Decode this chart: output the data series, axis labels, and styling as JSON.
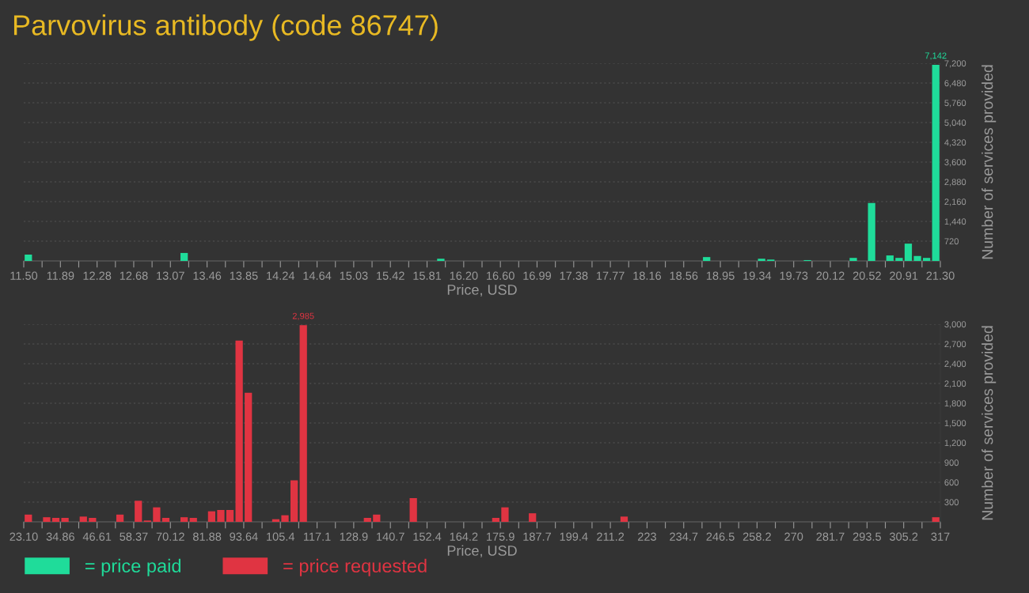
{
  "chart_data": [
    {
      "type": "histogram",
      "title": "Parvovirus antibody (code 86747)",
      "xlabel": "Price, USD",
      "ylabel": "Number of services provided",
      "bins": [
        11.5,
        11.598,
        11.696,
        11.794,
        11.892,
        11.99,
        12.088,
        12.186,
        12.284,
        12.382,
        12.48,
        12.578,
        12.676,
        12.774,
        12.872,
        12.97,
        13.068,
        13.166,
        13.264,
        13.362,
        13.46,
        13.558,
        13.656,
        13.754,
        13.852,
        13.95,
        14.048,
        14.146,
        14.244,
        14.342,
        14.44,
        14.538,
        14.636,
        14.734,
        14.832,
        14.93,
        15.028,
        15.126,
        15.224,
        15.322,
        15.42,
        15.518,
        15.616,
        15.714,
        15.812,
        15.91,
        16.008,
        16.106,
        16.204,
        16.302,
        16.4,
        16.498,
        16.596,
        16.694,
        16.792,
        16.89,
        16.988,
        17.086,
        17.184,
        17.282,
        17.38,
        17.478,
        17.576,
        17.674,
        17.772,
        17.87,
        17.968,
        18.066,
        18.164,
        18.262,
        18.36,
        18.458,
        18.556,
        18.654,
        18.752,
        18.85,
        18.948,
        19.046,
        19.144,
        19.242,
        19.34,
        19.438,
        19.536,
        19.634,
        19.732,
        19.83,
        19.928,
        20.026,
        20.124,
        20.222,
        20.32,
        20.418,
        20.516,
        20.614,
        20.712,
        20.81,
        20.908,
        21.006,
        21.104,
        21.202,
        21.3
      ],
      "series": [
        {
          "name": "= price paid",
          "color": "#1fdc9a",
          "values": [
            230,
            0,
            0,
            0,
            0,
            0,
            0,
            0,
            0,
            0,
            0,
            0,
            0,
            0,
            0,
            0,
            0,
            290,
            0,
            0,
            0,
            0,
            0,
            0,
            0,
            0,
            0,
            0,
            0,
            0,
            0,
            0,
            0,
            0,
            0,
            0,
            0,
            0,
            0,
            0,
            0,
            0,
            0,
            0,
            0,
            80,
            0,
            0,
            0,
            0,
            0,
            0,
            0,
            0,
            0,
            0,
            0,
            0,
            0,
            0,
            0,
            0,
            0,
            0,
            0,
            0,
            0,
            0,
            0,
            0,
            0,
            0,
            0,
            0,
            140,
            0,
            0,
            0,
            0,
            0,
            80,
            50,
            0,
            0,
            0,
            30,
            0,
            0,
            0,
            0,
            110,
            0,
            2110,
            0,
            200,
            110,
            630,
            180,
            110,
            7142
          ],
          "value_labels": [
            null,
            null,
            null,
            null,
            null,
            null,
            null,
            null,
            null,
            null,
            null,
            null,
            null,
            null,
            null,
            null,
            null,
            null,
            null,
            null,
            null,
            null,
            null,
            null,
            null,
            null,
            null,
            null,
            null,
            null,
            null,
            null,
            null,
            null,
            null,
            null,
            null,
            null,
            null,
            null,
            null,
            null,
            null,
            null,
            null,
            null,
            null,
            null,
            null,
            null,
            null,
            null,
            null,
            null,
            null,
            null,
            null,
            null,
            null,
            null,
            null,
            null,
            null,
            null,
            null,
            null,
            null,
            null,
            null,
            null,
            null,
            null,
            null,
            null,
            null,
            null,
            null,
            null,
            null,
            null,
            null,
            null,
            null,
            null,
            null,
            null,
            null,
            null,
            null,
            null,
            null,
            null,
            null,
            null,
            null,
            null,
            null,
            null,
            null,
            "7,142"
          ]
        }
      ],
      "xlim": [
        11.5,
        21.3
      ],
      "xticks": [
        {
          "value": 11.5,
          "label": "11.50"
        },
        {
          "value": 11.696,
          "label": null
        },
        {
          "value": 11.892,
          "label": "11.89"
        },
        {
          "value": 12.088,
          "label": null
        },
        {
          "value": 12.284,
          "label": "12.28"
        },
        {
          "value": 12.48,
          "label": null
        },
        {
          "value": 12.676,
          "label": "12.68"
        },
        {
          "value": 12.872,
          "label": null
        },
        {
          "value": 13.068,
          "label": "13.07"
        },
        {
          "value": 13.264,
          "label": null
        },
        {
          "value": 13.46,
          "label": "13.46"
        },
        {
          "value": 13.656,
          "label": null
        },
        {
          "value": 13.852,
          "label": "13.85"
        },
        {
          "value": 14.048,
          "label": null
        },
        {
          "value": 14.244,
          "label": "14.24"
        },
        {
          "value": 14.44,
          "label": null
        },
        {
          "value": 14.636,
          "label": "14.64"
        },
        {
          "value": 14.832,
          "label": null
        },
        {
          "value": 15.028,
          "label": "15.03"
        },
        {
          "value": 15.224,
          "label": null
        },
        {
          "value": 15.42,
          "label": "15.42"
        },
        {
          "value": 15.616,
          "label": null
        },
        {
          "value": 15.812,
          "label": "15.81"
        },
        {
          "value": 16.008,
          "label": null
        },
        {
          "value": 16.204,
          "label": "16.20"
        },
        {
          "value": 16.4,
          "label": null
        },
        {
          "value": 16.596,
          "label": "16.60"
        },
        {
          "value": 16.792,
          "label": null
        },
        {
          "value": 16.988,
          "label": "16.99"
        },
        {
          "value": 17.184,
          "label": null
        },
        {
          "value": 17.38,
          "label": "17.38"
        },
        {
          "value": 17.576,
          "label": null
        },
        {
          "value": 17.772,
          "label": "17.77"
        },
        {
          "value": 17.968,
          "label": null
        },
        {
          "value": 18.164,
          "label": "18.16"
        },
        {
          "value": 18.36,
          "label": null
        },
        {
          "value": 18.556,
          "label": "18.56"
        },
        {
          "value": 18.752,
          "label": null
        },
        {
          "value": 18.948,
          "label": "18.95"
        },
        {
          "value": 19.144,
          "label": null
        },
        {
          "value": 19.34,
          "label": "19.34"
        },
        {
          "value": 19.536,
          "label": null
        },
        {
          "value": 19.732,
          "label": "19.73"
        },
        {
          "value": 19.928,
          "label": null
        },
        {
          "value": 20.124,
          "label": "20.12"
        },
        {
          "value": 20.32,
          "label": null
        },
        {
          "value": 20.516,
          "label": "20.52"
        },
        {
          "value": 20.712,
          "label": null
        },
        {
          "value": 20.908,
          "label": "20.91"
        },
        {
          "value": 21.104,
          "label": null
        },
        {
          "value": 21.3,
          "label": "21.30"
        }
      ],
      "ylim": [
        0,
        7200
      ],
      "yticks": [
        {
          "value": 720,
          "label": "720"
        },
        {
          "value": 1440,
          "label": "1,440"
        },
        {
          "value": 2160,
          "label": "2,160"
        },
        {
          "value": 2880,
          "label": "2,880"
        },
        {
          "value": 3600,
          "label": "3,600"
        },
        {
          "value": 4320,
          "label": "4,320"
        },
        {
          "value": 5040,
          "label": "5,040"
        },
        {
          "value": 5760,
          "label": "5,760"
        },
        {
          "value": 6480,
          "label": "6,480"
        },
        {
          "value": 7200,
          "label": "7,200"
        }
      ],
      "grid": "y",
      "legend": "bottom left"
    },
    {
      "type": "histogram",
      "xlabel": "Price, USD",
      "ylabel": "Number of services provided",
      "bins": [
        23.1,
        26.039,
        28.978,
        31.917,
        34.856,
        37.795,
        40.734,
        43.673,
        46.612,
        49.551,
        52.49,
        55.429,
        58.368,
        61.307,
        64.246,
        67.185,
        70.124,
        73.063,
        76.002,
        78.941,
        81.88,
        84.819,
        87.758,
        90.697,
        93.636,
        96.575,
        99.514,
        102.453,
        105.392,
        108.331,
        111.27,
        114.209,
        117.148,
        120.087,
        123.026,
        125.965,
        128.904,
        131.843,
        134.782,
        137.721,
        140.66,
        143.599,
        146.538,
        149.477,
        152.416,
        155.355,
        158.294,
        161.233,
        164.172,
        167.111,
        170.05,
        172.989,
        175.928,
        178.867,
        181.806,
        184.745,
        187.684,
        190.623,
        193.562,
        196.501,
        199.44,
        202.379,
        205.318,
        208.257,
        211.196,
        214.135,
        217.074,
        220.013,
        222.952,
        225.891,
        228.83,
        231.769,
        234.708,
        237.647,
        240.586,
        243.525,
        246.464,
        249.403,
        252.342,
        255.281,
        258.22,
        261.159,
        264.098,
        267.037,
        269.976,
        272.915,
        275.854,
        278.793,
        281.732,
        284.671,
        287.61,
        290.549,
        293.488,
        296.427,
        299.366,
        302.305,
        305.244,
        308.183,
        311.122,
        314.061,
        317.0
      ],
      "series": [
        {
          "name": "= price requested",
          "color": "#e03442",
          "values": [
            110,
            0,
            70,
            60,
            60,
            0,
            80,
            60,
            0,
            0,
            110,
            0,
            320,
            20,
            220,
            60,
            0,
            70,
            60,
            0,
            160,
            180,
            180,
            2750,
            1960,
            0,
            0,
            40,
            100,
            630,
            2985,
            0,
            0,
            0,
            0,
            0,
            0,
            60,
            110,
            0,
            0,
            0,
            360,
            0,
            0,
            0,
            0,
            0,
            0,
            0,
            0,
            60,
            220,
            0,
            0,
            130,
            0,
            0,
            0,
            0,
            0,
            0,
            0,
            0,
            0,
            80,
            0,
            0,
            0,
            0,
            0,
            0,
            0,
            0,
            0,
            0,
            0,
            0,
            0,
            0,
            0,
            0,
            0,
            0,
            0,
            0,
            0,
            0,
            0,
            0,
            0,
            0,
            0,
            0,
            0,
            0,
            0,
            0,
            0,
            70
          ],
          "value_labels": [
            null,
            null,
            null,
            null,
            null,
            null,
            null,
            null,
            null,
            null,
            null,
            null,
            null,
            null,
            null,
            null,
            null,
            null,
            null,
            null,
            null,
            null,
            null,
            null,
            null,
            null,
            null,
            null,
            null,
            null,
            "2,985",
            null,
            null,
            null,
            null,
            null,
            null,
            null,
            null,
            null,
            null,
            null,
            null,
            null,
            null,
            null,
            null,
            null,
            null,
            null,
            null,
            null,
            null,
            null,
            null,
            null,
            null,
            null,
            null,
            null,
            null,
            null,
            null,
            null,
            null,
            null,
            null,
            null,
            null,
            null,
            null,
            null,
            null,
            null,
            null,
            null,
            null,
            null,
            null,
            null,
            null,
            null,
            null,
            null,
            null,
            null,
            null,
            null,
            null,
            null,
            null,
            null,
            null,
            null,
            null,
            null,
            null,
            null,
            null,
            null
          ]
        }
      ],
      "xlim": [
        23.1,
        317.0
      ],
      "xticks": [
        {
          "value": 23.1,
          "label": "23.10"
        },
        {
          "value": 28.978,
          "label": null
        },
        {
          "value": 34.856,
          "label": "34.86"
        },
        {
          "value": 40.734,
          "label": null
        },
        {
          "value": 46.612,
          "label": "46.61"
        },
        {
          "value": 52.49,
          "label": null
        },
        {
          "value": 58.368,
          "label": "58.37"
        },
        {
          "value": 64.246,
          "label": null
        },
        {
          "value": 70.124,
          "label": "70.12"
        },
        {
          "value": 76.002,
          "label": null
        },
        {
          "value": 81.88,
          "label": "81.88"
        },
        {
          "value": 87.758,
          "label": null
        },
        {
          "value": 93.636,
          "label": "93.64"
        },
        {
          "value": 99.514,
          "label": null
        },
        {
          "value": 105.392,
          "label": "105.4"
        },
        {
          "value": 111.27,
          "label": null
        },
        {
          "value": 117.148,
          "label": "117.1"
        },
        {
          "value": 123.026,
          "label": null
        },
        {
          "value": 128.904,
          "label": "128.9"
        },
        {
          "value": 134.782,
          "label": null
        },
        {
          "value": 140.66,
          "label": "140.7"
        },
        {
          "value": 146.538,
          "label": null
        },
        {
          "value": 152.416,
          "label": "152.4"
        },
        {
          "value": 158.294,
          "label": null
        },
        {
          "value": 164.172,
          "label": "164.2"
        },
        {
          "value": 170.05,
          "label": null
        },
        {
          "value": 175.928,
          "label": "175.9"
        },
        {
          "value": 181.806,
          "label": null
        },
        {
          "value": 187.684,
          "label": "187.7"
        },
        {
          "value": 193.562,
          "label": null
        },
        {
          "value": 199.44,
          "label": "199.4"
        },
        {
          "value": 205.318,
          "label": null
        },
        {
          "value": 211.196,
          "label": "211.2"
        },
        {
          "value": 217.074,
          "label": null
        },
        {
          "value": 222.952,
          "label": "223"
        },
        {
          "value": 228.83,
          "label": null
        },
        {
          "value": 234.708,
          "label": "234.7"
        },
        {
          "value": 240.586,
          "label": null
        },
        {
          "value": 246.464,
          "label": "246.5"
        },
        {
          "value": 252.342,
          "label": null
        },
        {
          "value": 258.22,
          "label": "258.2"
        },
        {
          "value": 264.098,
          "label": null
        },
        {
          "value": 269.976,
          "label": "270"
        },
        {
          "value": 275.854,
          "label": null
        },
        {
          "value": 281.732,
          "label": "281.7"
        },
        {
          "value": 287.61,
          "label": null
        },
        {
          "value": 293.488,
          "label": "293.5"
        },
        {
          "value": 299.366,
          "label": null
        },
        {
          "value": 305.244,
          "label": "305.2"
        },
        {
          "value": 311.122,
          "label": null
        },
        {
          "value": 317.0,
          "label": "317"
        }
      ],
      "ylim": [
        0,
        3000
      ],
      "yticks": [
        {
          "value": 300,
          "label": "300"
        },
        {
          "value": 600,
          "label": "600"
        },
        {
          "value": 900,
          "label": "900"
        },
        {
          "value": 1200,
          "label": "1,200"
        },
        {
          "value": 1500,
          "label": "1,500"
        },
        {
          "value": 1800,
          "label": "1,800"
        },
        {
          "value": 2100,
          "label": "2,100"
        },
        {
          "value": 2400,
          "label": "2,400"
        },
        {
          "value": 2700,
          "label": "2,700"
        },
        {
          "value": 3000,
          "label": "3,000"
        }
      ],
      "grid": "y",
      "legend": "bottom left"
    }
  ]
}
